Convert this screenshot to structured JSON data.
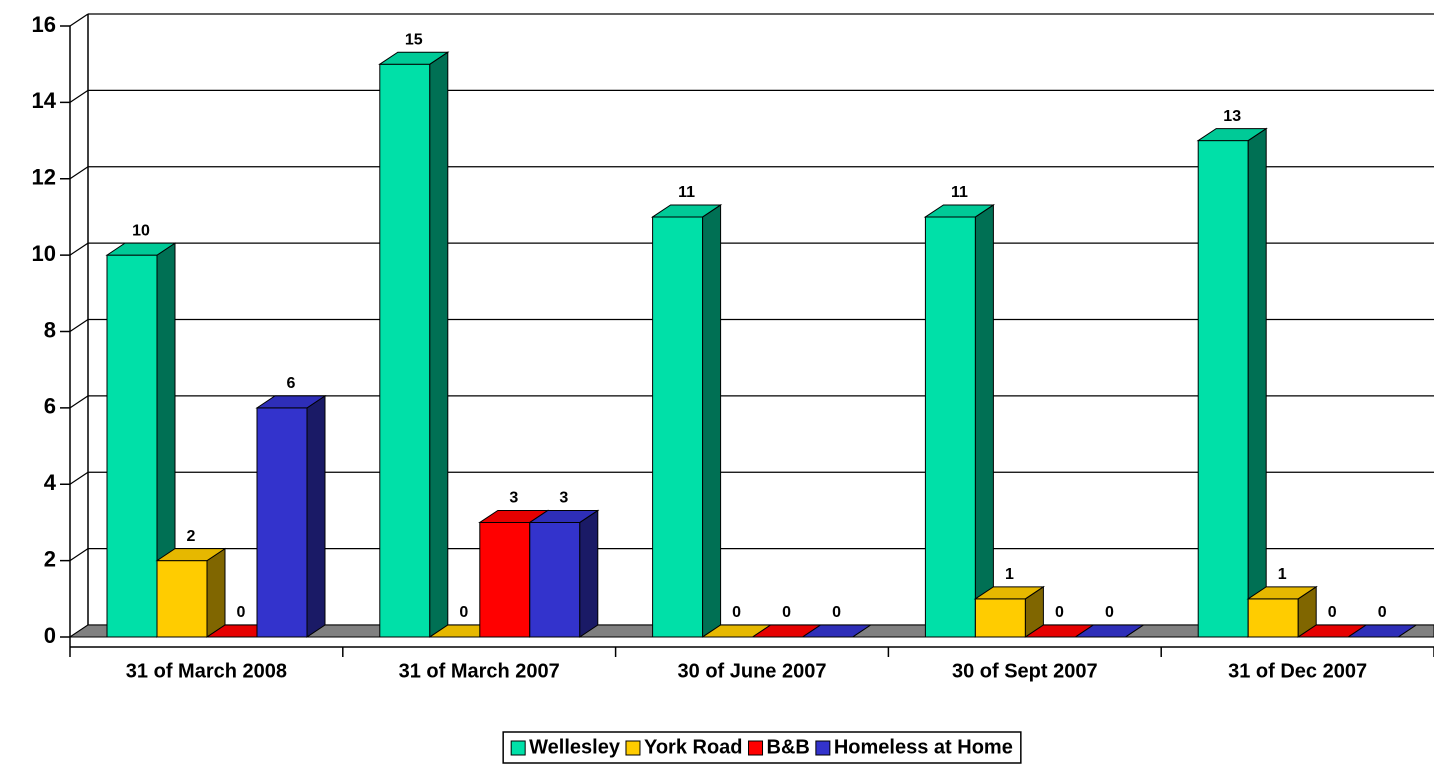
{
  "chart_data": {
    "type": "bar3d",
    "categories": [
      "31 of March 2008",
      "31 of March 2007",
      "30 of June 2007",
      "30 of Sept 2007",
      "31 of Dec 2007"
    ],
    "series": [
      {
        "name": "Wellesley",
        "color": "#00e0a8",
        "values": [
          10,
          15,
          11,
          11,
          13
        ]
      },
      {
        "name": "York Road",
        "color": "#ffcc00",
        "values": [
          2,
          0,
          0,
          1,
          1
        ]
      },
      {
        "name": "B&B",
        "color": "#ff0000",
        "values": [
          0,
          3,
          0,
          0,
          0
        ]
      },
      {
        "name": "Homeless at Home",
        "color": "#3333cc",
        "values": [
          6,
          3,
          0,
          0,
          0
        ]
      }
    ],
    "ylim": [
      0,
      16
    ],
    "yticks": [
      0,
      2,
      4,
      6,
      8,
      10,
      12,
      14,
      16
    ],
    "grid": true,
    "legend": "bottom"
  }
}
